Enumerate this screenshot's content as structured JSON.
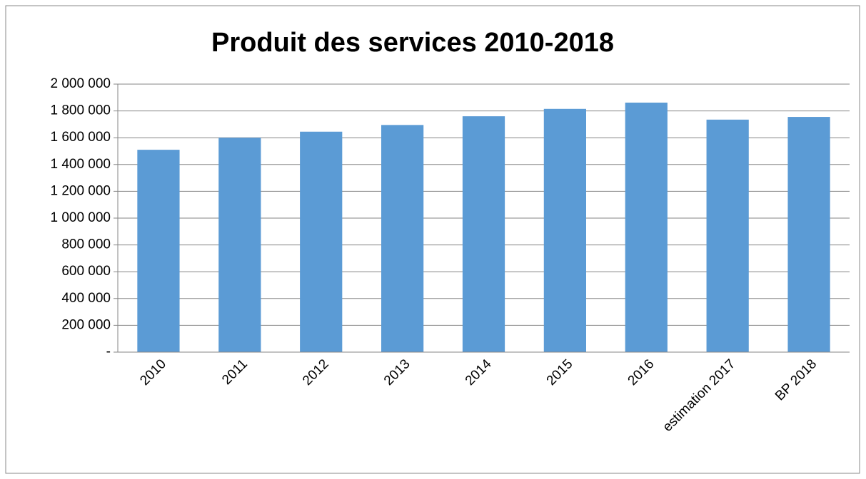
{
  "chart_data": {
    "type": "bar",
    "title": "Produit des services 2010-2018",
    "categories": [
      "2010",
      "2011",
      "2012",
      "2013",
      "2014",
      "2015",
      "2016",
      "estimation 2017",
      "BP 2018"
    ],
    "values": [
      1510000,
      1600000,
      1645000,
      1695000,
      1760000,
      1815000,
      1862000,
      1735000,
      1755000
    ],
    "color": "#5b9bd5",
    "ylim": [
      0,
      2000000
    ],
    "yticks": [
      {
        "value": 0,
        "label": "-"
      },
      {
        "value": 200000,
        "label": "200 000"
      },
      {
        "value": 400000,
        "label": "400 000"
      },
      {
        "value": 600000,
        "label": "600 000"
      },
      {
        "value": 800000,
        "label": "800 000"
      },
      {
        "value": 1000000,
        "label": "1 000 000"
      },
      {
        "value": 1200000,
        "label": "1 200 000"
      },
      {
        "value": 1400000,
        "label": "1 400 000"
      },
      {
        "value": 1600000,
        "label": "1 600 000"
      },
      {
        "value": 1800000,
        "label": "1 800 000"
      },
      {
        "value": 2000000,
        "label": "2 000 000"
      }
    ],
    "grid": true
  }
}
